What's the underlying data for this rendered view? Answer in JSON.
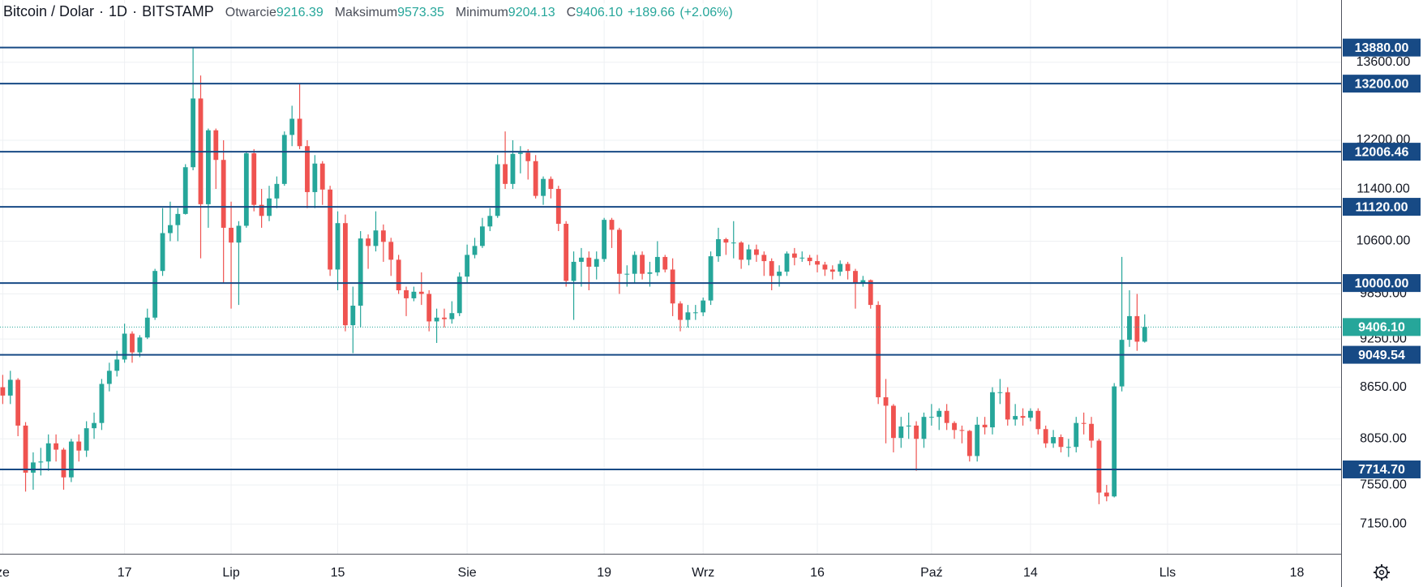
{
  "header": {
    "symbol": "Bitcoin / Dolar",
    "interval": "1D",
    "exchange": "BITSTAMP",
    "open_label": "Otwarcie",
    "open": "9216.39",
    "high_label": "Maksimum",
    "high": "9573.35",
    "low_label": "Minimum",
    "low": "9204.13",
    "close_label": "C",
    "close": "9406.10",
    "change": "+189.66",
    "change_pct": "(+2.06%)"
  },
  "chart_data": {
    "type": "candlestick",
    "log_scale": true,
    "grid": true,
    "up_color": "#26a69a",
    "down_color": "#ef5350",
    "level_color": "#174a85",
    "last_price_color": "#26a69a",
    "x": [
      0,
      1,
      2,
      3,
      4,
      5,
      6,
      7,
      8,
      9,
      10,
      11,
      12,
      13,
      14,
      15,
      16,
      17,
      18,
      19,
      20,
      21,
      22,
      23,
      24,
      25,
      26,
      27,
      28,
      29,
      30,
      31,
      32,
      33,
      34,
      35,
      36,
      37,
      38,
      39,
      40,
      41,
      42,
      43,
      44,
      45,
      46,
      47,
      48,
      49,
      50,
      51,
      52,
      53,
      54,
      55,
      56,
      57,
      58,
      59,
      60,
      61,
      62,
      63,
      64,
      65,
      66,
      67,
      68,
      69,
      70,
      71,
      72,
      73,
      74,
      75,
      76,
      77,
      78,
      79,
      80,
      81,
      82,
      83,
      84,
      85,
      86,
      87,
      88,
      89,
      90,
      91,
      92,
      93,
      94,
      95,
      96,
      97,
      98,
      99,
      100,
      101,
      102,
      103,
      104,
      105,
      106,
      107,
      108,
      109,
      110,
      111,
      112,
      113,
      114,
      115,
      116,
      117,
      118,
      119,
      120,
      121,
      122,
      123,
      124,
      125,
      126,
      127,
      128,
      129,
      130,
      131,
      132,
      133,
      134,
      135,
      136,
      137,
      138,
      139,
      140,
      141,
      142,
      143,
      144,
      145,
      146,
      147,
      148,
      149,
      150
    ],
    "open": [
      8650,
      8550,
      8740,
      8200,
      7680,
      7790,
      7800,
      8000,
      7930,
      7630,
      8020,
      7920,
      8170,
      8230,
      8690,
      8850,
      8990,
      9320,
      9080,
      9270,
      9530,
      10170,
      10720,
      10840,
      11010,
      11750,
      12930,
      11160,
      12370,
      11870,
      10800,
      10580,
      10830,
      11980,
      11150,
      10980,
      11250,
      11480,
      12290,
      12570,
      12100,
      11350,
      11810,
      11390,
      10190,
      10870,
      9430,
      9690,
      10640,
      10530,
      10760,
      10590,
      10330,
      9900,
      9790,
      9880,
      9850,
      9480,
      9530,
      9510,
      9590,
      10090,
      10400,
      10530,
      10820,
      10980,
      11800,
      11480,
      11970,
      11990,
      11850,
      11290,
      11560,
      11400,
      10860,
      10030,
      10300,
      10360,
      10230,
      10340,
      10920,
      10770,
      10130,
      10130,
      10400,
      10130,
      10150,
      10370,
      10190,
      9720,
      9500,
      9600,
      9600,
      9760,
      10380,
      10630,
      10580,
      10580,
      10330,
      10480,
      10400,
      10310,
      10100,
      10160,
      10420,
      10360,
      10360,
      10310,
      10260,
      10190,
      10160,
      10270,
      10170,
      9990,
      10040,
      9700,
      8530,
      8430,
      8060,
      8190,
      8200,
      8050,
      8300,
      8300,
      8370,
      8230,
      8150,
      8140,
      7860,
      8210,
      8180,
      8590,
      8590,
      8270,
      8310,
      8290,
      8370,
      8160,
      8000,
      8070,
      7960,
      7960,
      8230,
      8220,
      8030,
      7470,
      7430,
      8660,
      9240,
      9550,
      9216.39
    ],
    "high": [
      8800,
      8850,
      8760,
      8240,
      7900,
      7950,
      8100,
      8100,
      7950,
      8050,
      8100,
      8250,
      8350,
      8750,
      8950,
      9100,
      9450,
      9350,
      9300,
      9650,
      10200,
      11100,
      11200,
      11100,
      11800,
      13880,
      13350,
      12400,
      12400,
      12200,
      11200,
      10900,
      12000,
      12050,
      11400,
      11450,
      11600,
      12350,
      12800,
      13200,
      12200,
      11950,
      11850,
      11450,
      11050,
      11000,
      9950,
      10750,
      10700,
      11050,
      10850,
      10650,
      10400,
      9950,
      9950,
      10150,
      9900,
      9650,
      9650,
      9750,
      10150,
      10550,
      10650,
      10950,
      11100,
      11950,
      12350,
      12200,
      12100,
      12050,
      11950,
      11600,
      11600,
      11450,
      10900,
      10450,
      10500,
      10450,
      10450,
      10950,
      10950,
      10800,
      10250,
      10450,
      10450,
      10300,
      10600,
      10400,
      10350,
      9750,
      9700,
      9700,
      9800,
      10450,
      10800,
      10650,
      10900,
      10600,
      10550,
      10550,
      10450,
      10350,
      10250,
      10450,
      10500,
      10450,
      10400,
      10400,
      10300,
      10250,
      10320,
      10300,
      10200,
      10100,
      10050,
      9750,
      8750,
      8450,
      8300,
      8350,
      8250,
      8350,
      8450,
      8400,
      8450,
      8250,
      8200,
      8150,
      8300,
      8300,
      8650,
      8750,
      8650,
      8450,
      8400,
      8400,
      8400,
      8200,
      8150,
      8100,
      8050,
      8300,
      8350,
      8300,
      8050,
      7550,
      8700,
      10370,
      9900,
      9850,
      9573.35
    ],
    "low": [
      8450,
      8450,
      8080,
      7480,
      7500,
      7650,
      7700,
      7800,
      7500,
      7580,
      7800,
      7850,
      8050,
      8150,
      8600,
      8780,
      8950,
      8950,
      9020,
      9250,
      9500,
      10100,
      10600,
      10600,
      11000,
      11700,
      10350,
      10800,
      11400,
      10000,
      9650,
      9700,
      10800,
      11050,
      10800,
      10900,
      11100,
      11450,
      12100,
      12050,
      11100,
      11100,
      11150,
      10100,
      9900,
      9350,
      9070,
      9400,
      10200,
      10450,
      10300,
      10100,
      9850,
      9550,
      9750,
      9700,
      9350,
      9200,
      9400,
      9450,
      9550,
      10000,
      10350,
      10500,
      10750,
      10950,
      11400,
      11400,
      11650,
      11550,
      11250,
      11150,
      11250,
      10750,
      9950,
      9500,
      9950,
      9900,
      10050,
      10300,
      10500,
      9850,
      9950,
      10000,
      10050,
      9950,
      10100,
      10150,
      9550,
      9350,
      9400,
      9500,
      9550,
      9700,
      10300,
      10400,
      10350,
      10200,
      10250,
      10300,
      10100,
      9900,
      9950,
      10100,
      10250,
      10300,
      10250,
      10150,
      10100,
      10050,
      10100,
      10050,
      9650,
      9950,
      9650,
      8450,
      8000,
      7900,
      7950,
      8050,
      7700,
      7950,
      8200,
      8150,
      8150,
      8050,
      8000,
      7800,
      7800,
      8100,
      8100,
      8450,
      8200,
      8200,
      8200,
      8250,
      8100,
      7950,
      7950,
      7900,
      7850,
      7900,
      8100,
      7950,
      7350,
      7380,
      7420,
      8600,
      9150,
      9100,
      9204.13
    ],
    "close": [
      8550,
      8740,
      8200,
      7680,
      7790,
      7800,
      8000,
      7930,
      7630,
      8020,
      7920,
      8170,
      8230,
      8690,
      8850,
      8990,
      9320,
      9080,
      9270,
      9530,
      10170,
      10720,
      10840,
      11010,
      11750,
      12930,
      11160,
      12370,
      11870,
      10800,
      10580,
      10830,
      11980,
      11150,
      10980,
      11250,
      11480,
      12290,
      12570,
      12100,
      11350,
      11810,
      11390,
      10190,
      10870,
      9430,
      9690,
      10640,
      10530,
      10760,
      10590,
      10330,
      9900,
      9790,
      9880,
      9850,
      9480,
      9530,
      9510,
      9590,
      10090,
      10400,
      10530,
      10820,
      10980,
      11800,
      11480,
      11970,
      11990,
      11850,
      11290,
      11560,
      11400,
      10860,
      10030,
      10300,
      10360,
      10230,
      10340,
      10920,
      10770,
      10130,
      10130,
      10400,
      10130,
      10150,
      10370,
      10190,
      9720,
      9500,
      9600,
      9600,
      9760,
      10380,
      10630,
      10580,
      10580,
      10330,
      10480,
      10400,
      10310,
      10100,
      10160,
      10420,
      10360,
      10360,
      10310,
      10260,
      10190,
      10160,
      10270,
      10170,
      9990,
      10040,
      9700,
      8530,
      8430,
      8060,
      8190,
      8200,
      8050,
      8300,
      8300,
      8370,
      8230,
      8150,
      8140,
      7860,
      8210,
      8180,
      8590,
      8590,
      8270,
      8310,
      8290,
      8370,
      8160,
      8000,
      8070,
      7960,
      7960,
      8230,
      8220,
      8030,
      7470,
      7430,
      8660,
      9240,
      9550,
      9216.39,
      9406.1
    ],
    "last_price_label": "9406.10",
    "levels": [
      {
        "value": 13880,
        "label": "13880.00"
      },
      {
        "value": 13200,
        "label": "13200.00"
      },
      {
        "value": 12006.46,
        "label": "12006.46"
      },
      {
        "value": 11120,
        "label": "11120.00"
      },
      {
        "value": 10000,
        "label": "10000.00"
      },
      {
        "value": 9049.54,
        "label": "9049.54"
      },
      {
        "value": 7714.7,
        "label": "7714.70"
      }
    ],
    "ylim": [
      6860,
      14830
    ],
    "yticks": [
      {
        "value": 13600,
        "label": "13600.00"
      },
      {
        "value": 12200,
        "label": "12200.00"
      },
      {
        "value": 11400,
        "label": "11400.00"
      },
      {
        "value": 10600,
        "label": "10600.00"
      },
      {
        "value": 9850,
        "label": "9850.00"
      },
      {
        "value": 9250,
        "label": "9250.00"
      },
      {
        "value": 8650,
        "label": "8650.00"
      },
      {
        "value": 8050,
        "label": "8050.00"
      },
      {
        "value": 7550,
        "label": "7550.00"
      },
      {
        "value": 7150,
        "label": "7150.00"
      }
    ],
    "xlim": [
      -0.36,
      175.8
    ],
    "xticks": [
      {
        "value": 0,
        "label": "ze"
      },
      {
        "value": 16,
        "label": "17"
      },
      {
        "value": 30,
        "label": "Lip"
      },
      {
        "value": 44,
        "label": "15"
      },
      {
        "value": 61,
        "label": "Sie"
      },
      {
        "value": 79,
        "label": "19"
      },
      {
        "value": 92,
        "label": "Wrz"
      },
      {
        "value": 107,
        "label": "16"
      },
      {
        "value": 122,
        "label": "Paź"
      },
      {
        "value": 135,
        "label": "14"
      },
      {
        "value": 153,
        "label": "Lls"
      },
      {
        "value": 170,
        "label": "18"
      }
    ]
  }
}
